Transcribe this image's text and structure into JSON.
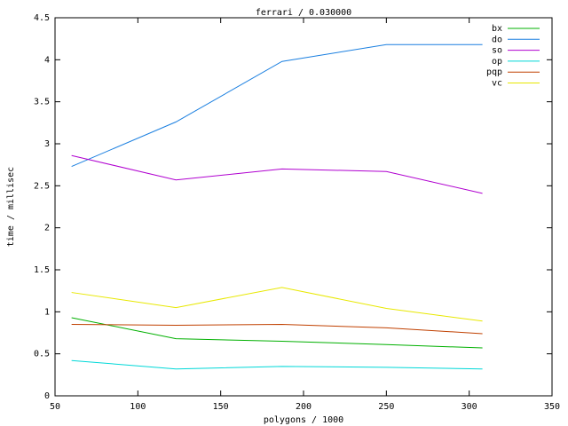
{
  "chart_data": {
    "type": "line",
    "title": "ferrari / 0.030000",
    "xlabel": "polygons / 1000",
    "ylabel": "time / millisec",
    "x": [
      60,
      123,
      187,
      250,
      308
    ],
    "series": [
      {
        "name": "bx",
        "color": "#00b000",
        "values": [
          0.93,
          0.68,
          0.65,
          0.61,
          0.57
        ]
      },
      {
        "name": "do",
        "color": "#1a7fe0",
        "values": [
          2.73,
          3.26,
          3.98,
          4.18,
          4.18
        ]
      },
      {
        "name": "so",
        "color": "#b000d0",
        "values": [
          2.86,
          2.57,
          2.7,
          2.67,
          2.41
        ]
      },
      {
        "name": "op",
        "color": "#00d8d8",
        "values": [
          0.42,
          0.32,
          0.35,
          0.34,
          0.32
        ]
      },
      {
        "name": "pqp",
        "color": "#c04000",
        "values": [
          0.85,
          0.84,
          0.85,
          0.81,
          0.74
        ]
      },
      {
        "name": "vc",
        "color": "#e8e800",
        "values": [
          1.23,
          1.05,
          1.29,
          1.04,
          0.89
        ]
      }
    ],
    "xlim": [
      50,
      350
    ],
    "xticks": [
      50,
      100,
      150,
      200,
      250,
      300,
      350
    ],
    "ylim": [
      0,
      4.5
    ],
    "yticks": [
      0,
      0.5,
      1,
      1.5,
      2,
      2.5,
      3,
      3.5,
      4,
      4.5
    ],
    "legend": "upper right",
    "grid": false
  }
}
